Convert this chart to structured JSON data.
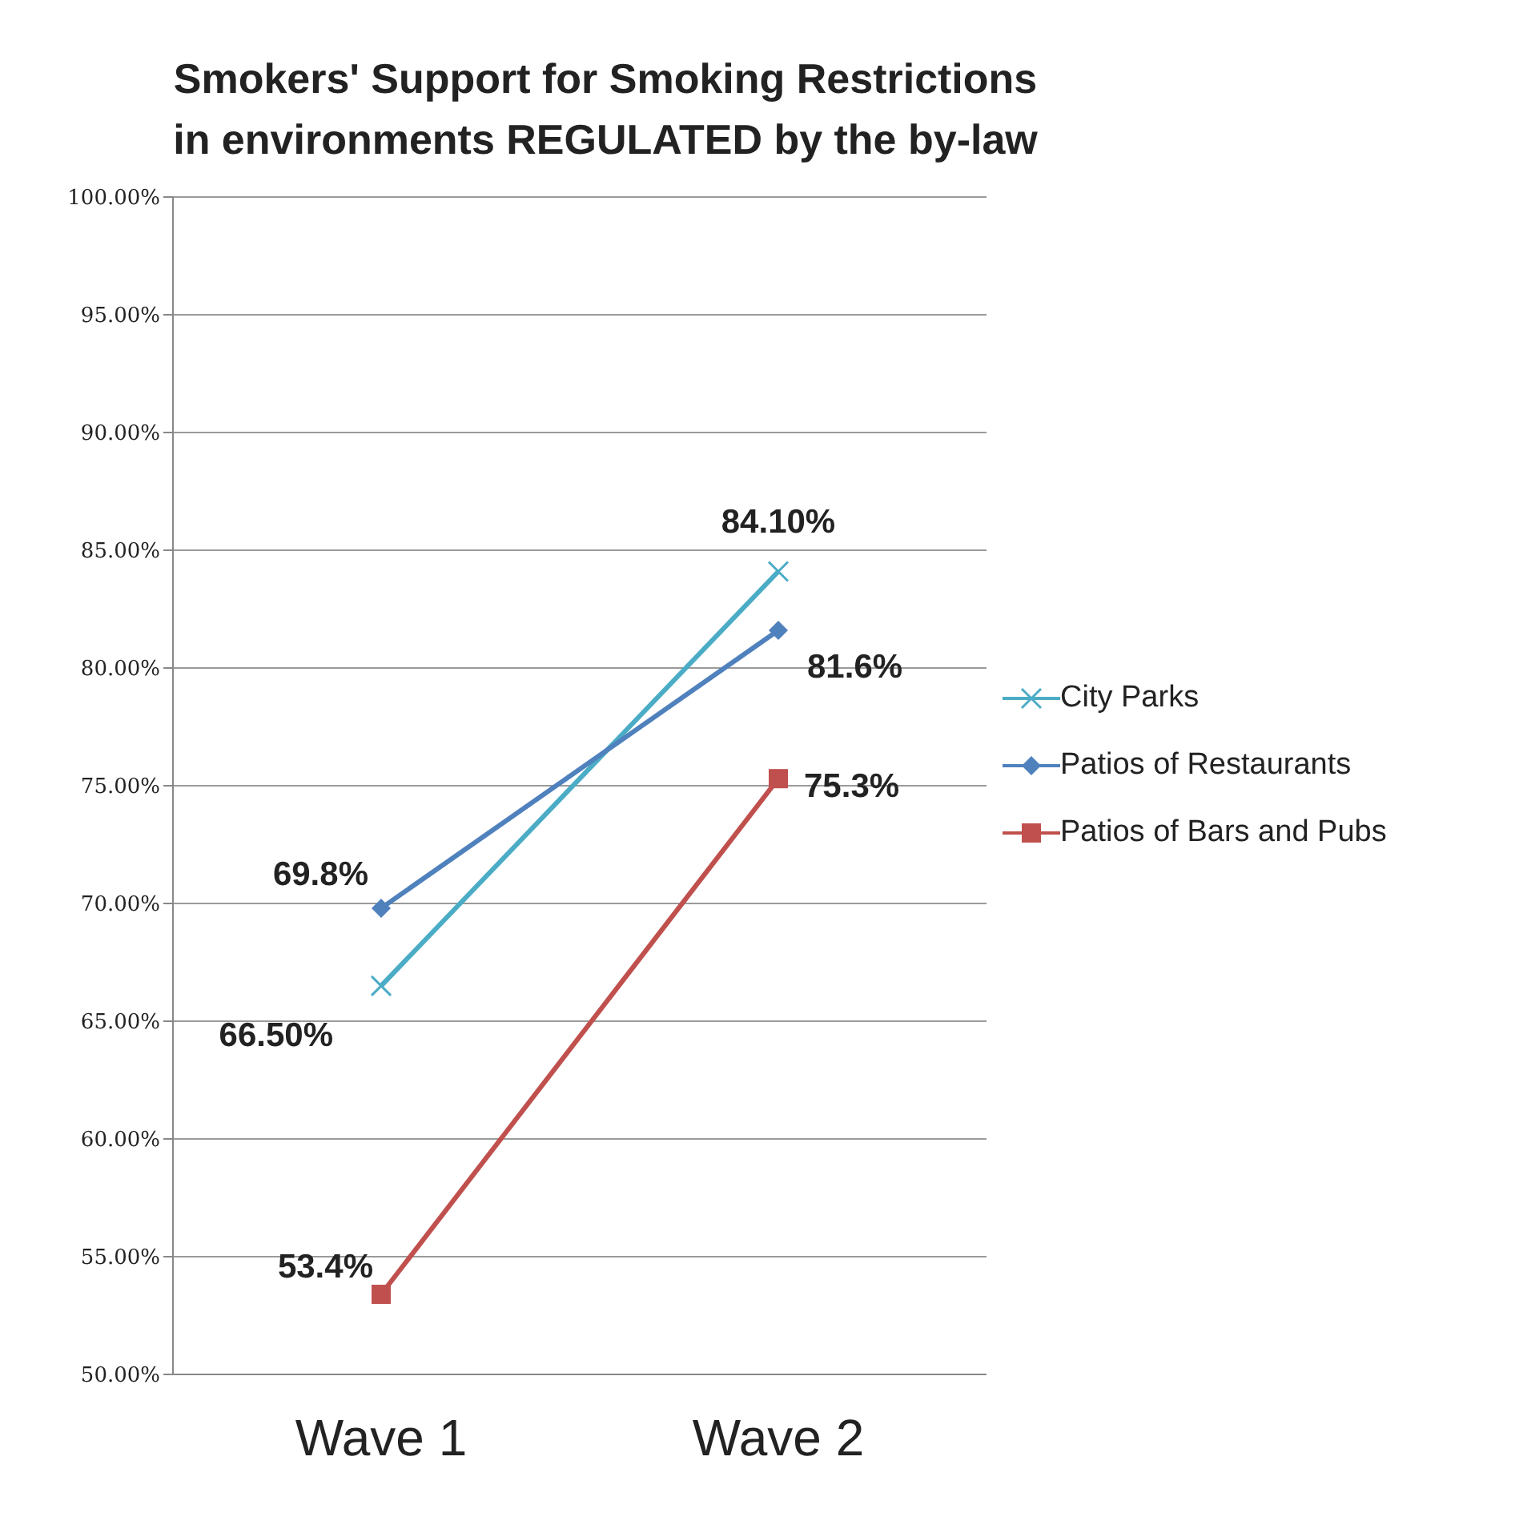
{
  "chart_data": {
    "type": "line",
    "title": "Smokers' Support for Smoking Restrictions in environments REGULATED by the by-law",
    "categories": [
      "Wave 1",
      "Wave 2"
    ],
    "series": [
      {
        "name": "City Parks",
        "color": "#4bacc6",
        "marker": "cross",
        "values": [
          66.5,
          84.1
        ],
        "value_labels": [
          "66.50%",
          "84.10%"
        ]
      },
      {
        "name": "Patios of Restaurants",
        "color": "#4f81bd",
        "marker": "diamond",
        "values": [
          69.8,
          81.6
        ],
        "value_labels": [
          "69.8%",
          "81.6%"
        ]
      },
      {
        "name": "Patios of Bars and Pubs",
        "color": "#c0504d",
        "marker": "square",
        "values": [
          53.4,
          75.3
        ],
        "value_labels": [
          "53.4%",
          "75.3%"
        ]
      }
    ],
    "ylim": [
      50,
      100
    ],
    "yticks": [
      {
        "value": 50,
        "label": "50.00%"
      },
      {
        "value": 55,
        "label": "55.00%"
      },
      {
        "value": 60,
        "label": "60.00%"
      },
      {
        "value": 65,
        "label": "65.00%"
      },
      {
        "value": 70,
        "label": "70.00%"
      },
      {
        "value": 75,
        "label": "75.00%"
      },
      {
        "value": 80,
        "label": "80.00%"
      },
      {
        "value": 85,
        "label": "85.00%"
      },
      {
        "value": 90,
        "label": "90.00%"
      },
      {
        "value": 95,
        "label": "95.00%"
      },
      {
        "value": 100,
        "label": "100.00%"
      }
    ],
    "grid": "y",
    "legend": "right",
    "line_style": "solid"
  }
}
